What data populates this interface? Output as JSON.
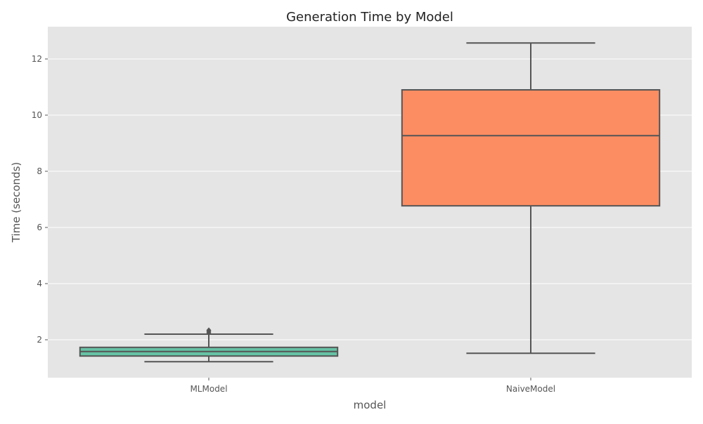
{
  "chart_data": {
    "type": "box",
    "title": "Generation Time by Model",
    "xlabel": "model",
    "ylabel": "Time (seconds)",
    "categories": [
      "MLModel",
      "NaiveModel"
    ],
    "ylim": [
      0.65,
      13.15
    ],
    "yticks": [
      2,
      4,
      6,
      8,
      10,
      12
    ],
    "grid": true,
    "boxes": [
      {
        "category": "MLModel",
        "color": "#66c2a5",
        "whisker_low": 1.22,
        "q1": 1.42,
        "median": 1.58,
        "q3": 1.73,
        "whisker_high": 2.2,
        "outliers": [
          2.25,
          2.3,
          2.34
        ]
      },
      {
        "category": "NaiveModel",
        "color": "#fc8d62",
        "whisker_low": 1.52,
        "q1": 6.77,
        "median": 9.27,
        "q3": 10.9,
        "whisker_high": 12.57,
        "outliers": []
      }
    ]
  },
  "colors": {
    "panel": "#e5e5e5",
    "grid": "#ffffff",
    "line": "#555555",
    "text": "#555555",
    "title": "#222222"
  }
}
